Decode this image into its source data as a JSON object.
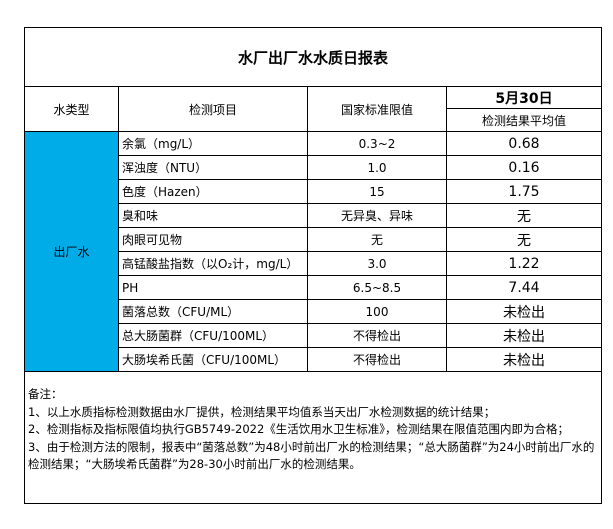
{
  "title": "水厂出厂水水质日报表",
  "headers": {
    "type": "水类型",
    "item": "检测项目",
    "limit": "国家标准限值",
    "date": "5月30日",
    "result": "检测结果平均值"
  },
  "water_type": "出厂水",
  "type_color": "#00ACE8",
  "rows": [
    {
      "item": "余氯（mg/L）",
      "limit": "0.3~2",
      "result": "0.68"
    },
    {
      "item": "浑浊度（NTU）",
      "limit": "1.0",
      "result": "0.16"
    },
    {
      "item": "色度（Hazen）",
      "limit": "15",
      "result": "1.75"
    },
    {
      "item": "臭和味",
      "limit": "无异臭、异味",
      "result": "无"
    },
    {
      "item": "肉眼可见物",
      "limit": "无",
      "result": "无"
    },
    {
      "item": "高锰酸盐指数（以O₂计，mg/L）",
      "limit": "3.0",
      "result": "1.22"
    },
    {
      "item": "PH",
      "limit": "6.5~8.5",
      "result": "7.44"
    },
    {
      "item": "菌落总数（CFU/ML）",
      "limit": "100",
      "result": "未检出"
    },
    {
      "item": "总大肠菌群（CFU/100ML）",
      "limit": "不得检出",
      "result": "未检出"
    },
    {
      "item": "大肠埃希氏菌（CFU/100ML）",
      "limit": "不得检出",
      "result": "未检出"
    }
  ],
  "notes": [
    "备注：",
    "1、以上水质指标检测数据由水厂提供，检测结果平均值系当天出厂水检测数据的统计结果；",
    "2、检测指标及指标限值均执行GB5749-2022《生活饮用水卫生标准》，检测结果在限值范围内即为合格；",
    "3、由于检测方法的限制，报表中“菌落总数”为48小时前出厂水的检测结果；“总大肠菌群”为24小时前出厂水的检测结果；“大肠埃希氏菌群”为28-30小时前出厂水的检测结果。"
  ]
}
